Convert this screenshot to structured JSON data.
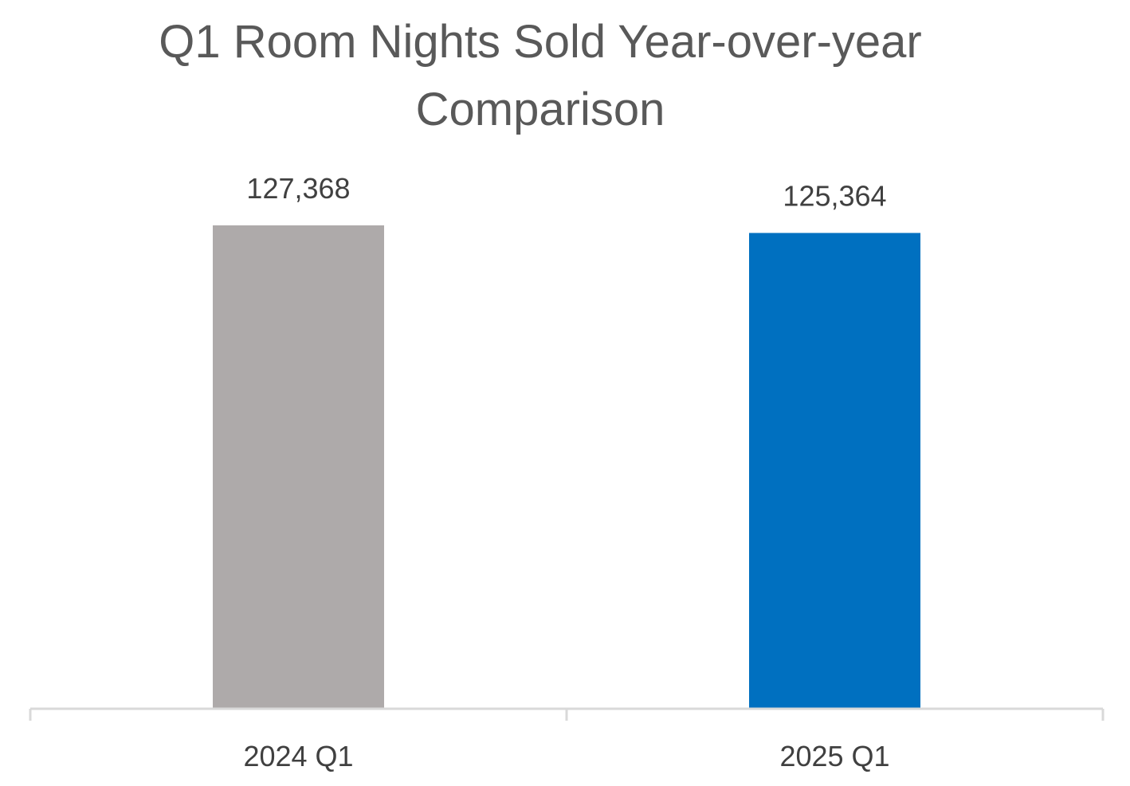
{
  "chart_data": {
    "type": "bar",
    "title_lines": [
      "Q1 Room Nights Sold Year-over-year",
      "Comparison"
    ],
    "categories": [
      "2024 Q1",
      "2025 Q1"
    ],
    "values": [
      127368,
      125364
    ],
    "data_labels": [
      "127,368",
      "125,364"
    ],
    "bar_colors": [
      "#AEAAAA",
      "#0070C0"
    ],
    "ylim": [
      0,
      127368
    ],
    "grid": false,
    "legend": "none",
    "xlabel": "",
    "ylabel": ""
  },
  "colors": {
    "axis_line": "#D9D9D9",
    "title_text": "#595959",
    "label_text": "#404040"
  }
}
